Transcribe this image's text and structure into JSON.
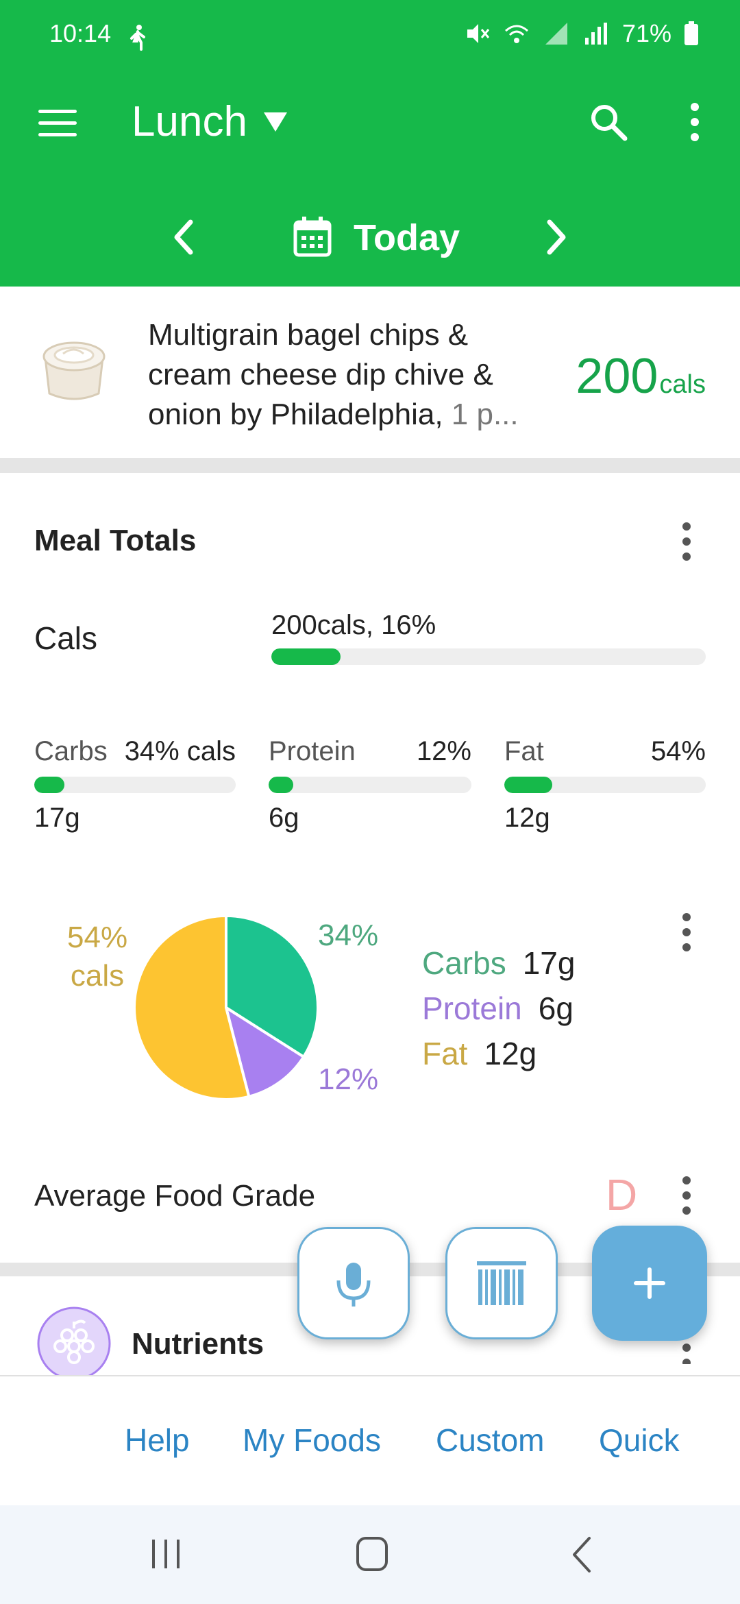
{
  "status_bar": {
    "time": "10:14",
    "battery": "71%"
  },
  "header": {
    "meal": "Lunch",
    "date": "Today"
  },
  "food_item": {
    "name": "Multigrain bagel chips & cream cheese dip chive & onion by Philadelphia,",
    "serving": " 1 p...",
    "cals_value": "200",
    "cals_unit": "cals"
  },
  "meal_totals": {
    "title": "Meal Totals",
    "cals_label": "Cals",
    "cals_summary": "200cals, 16%",
    "cals_percent": 16,
    "macros": [
      {
        "name": "Carbs",
        "percent_label": "34% cals",
        "grams": "17g",
        "percent": 34
      },
      {
        "name": "Protein",
        "percent_label": "12%",
        "grams": "6g",
        "percent": 12
      },
      {
        "name": "Fat",
        "percent_label": "54%",
        "grams": "12g",
        "percent": 54
      }
    ]
  },
  "chart_data": {
    "type": "pie",
    "slices": [
      {
        "name": "Carbs",
        "value": 34,
        "label": "34%",
        "color": "#1cc38f"
      },
      {
        "name": "Protein",
        "value": 12,
        "label": "12%",
        "color": "#a880f0"
      },
      {
        "name": "Fat",
        "value": 54,
        "label": "54%",
        "color": "#fdc431"
      }
    ],
    "fat_label_line1": "54%",
    "fat_label_line2": "cals",
    "legend": [
      {
        "name": "Carbs",
        "value": "17g",
        "color": "#4ea87f"
      },
      {
        "name": "Protein",
        "value": "6g",
        "color": "#9b79d8"
      },
      {
        "name": "Fat",
        "value": "12g",
        "color": "#c9a845"
      }
    ]
  },
  "food_grade": {
    "label": "Average Food Grade",
    "grade": "D"
  },
  "nutrients": {
    "label": "Nutrients"
  },
  "bottom_links": [
    "Help",
    "My Foods",
    "Custom",
    "Quick"
  ],
  "colors": {
    "brand_green": "#16b94a",
    "fab_blue": "#64aedb",
    "link_blue": "#2b84c4",
    "grade_red": "#f4a6a6"
  },
  "icons": {
    "menu": "menu-icon",
    "search": "search-icon",
    "more": "more-vertical-icon",
    "calendar": "calendar-icon",
    "mic": "microphone-icon",
    "barcode": "barcode-icon",
    "add": "plus-icon",
    "grapes": "grapes-icon"
  }
}
